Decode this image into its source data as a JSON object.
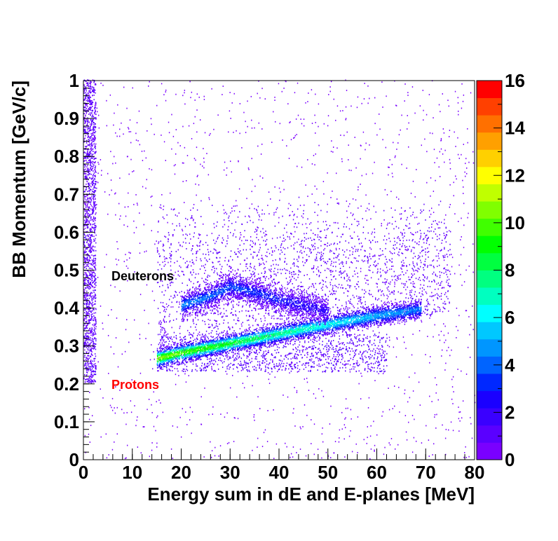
{
  "chart_data": {
    "type": "heatmap",
    "xlabel": "Energy sum in dE and E-planes [MeV]",
    "ylabel": "BB Momentum [GeV/c]",
    "xlim": [
      0,
      80
    ],
    "ylim": [
      0,
      1
    ],
    "x_ticks": [
      "0",
      "10",
      "20",
      "30",
      "40",
      "50",
      "60",
      "70",
      "80"
    ],
    "y_ticks": [
      "0",
      "0.1",
      "0.2",
      "0.3",
      "0.4",
      "0.5",
      "0.6",
      "0.7",
      "0.8",
      "0.9",
      "1"
    ],
    "z_range": [
      0,
      16
    ],
    "z_ticks": [
      "0",
      "2",
      "4",
      "6",
      "8",
      "10",
      "12",
      "14",
      "16"
    ],
    "palette": [
      "#7a00ff",
      "#5a00ff",
      "#3a00ff",
      "#1a00ff",
      "#0028ff",
      "#0064ff",
      "#0096ff",
      "#00c8ff",
      "#00ffff",
      "#00ffc0",
      "#00ff80",
      "#00ff40",
      "#00ff00",
      "#40ff00",
      "#80ff00",
      "#c0ff00",
      "#ffff00",
      "#ffd000",
      "#ffa000",
      "#ff7000",
      "#ff4000",
      "#ff0000"
    ],
    "bands": [
      {
        "label": "Protons",
        "color": "#ff0000",
        "ridge": [
          [
            15,
            0.265
          ],
          [
            20,
            0.28
          ],
          [
            30,
            0.305
          ],
          [
            40,
            0.33
          ],
          [
            50,
            0.355
          ],
          [
            60,
            0.378
          ],
          [
            69,
            0.395
          ]
        ],
        "peak_counts": 10
      },
      {
        "label": "Deuterons",
        "color": "#000000",
        "ridge": [
          [
            20,
            0.405
          ],
          [
            26,
            0.43
          ],
          [
            30,
            0.455
          ],
          [
            35,
            0.44
          ],
          [
            40,
            0.42
          ],
          [
            45,
            0.405
          ],
          [
            50,
            0.39
          ]
        ],
        "peak_counts": 4
      }
    ]
  }
}
